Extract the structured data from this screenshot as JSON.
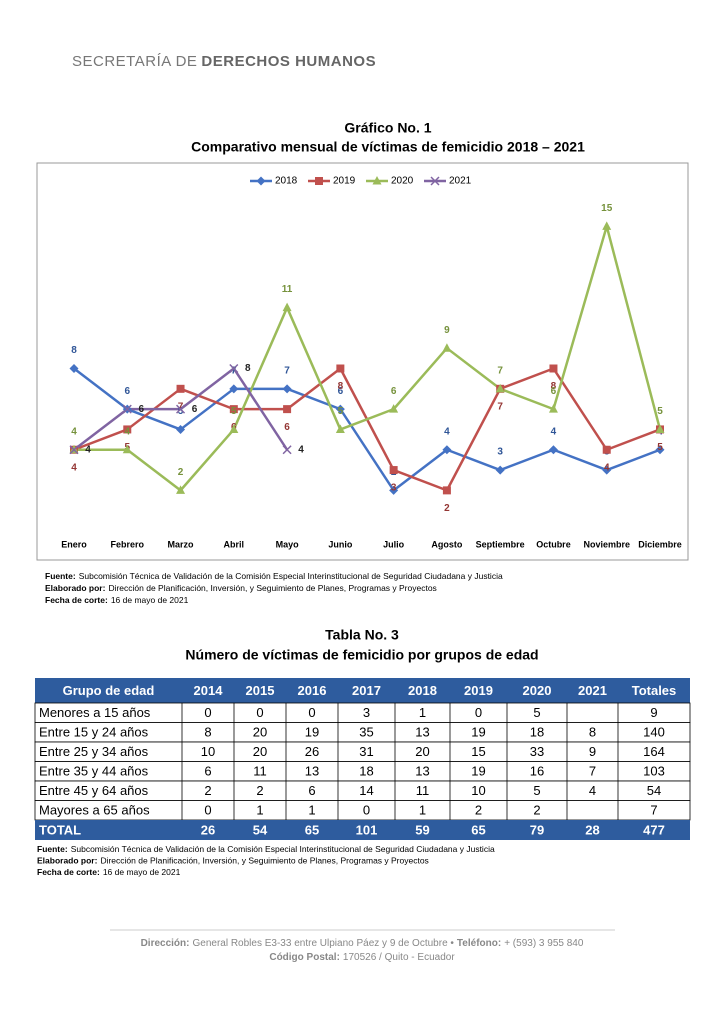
{
  "header": {
    "org_light": "SECRETARÍA DE",
    "org_bold": "DERECHOS HUMANOS"
  },
  "chart_data": {
    "type": "line",
    "title": "Gráfico No. 1",
    "subtitle": "Comparativo mensual de víctimas de femicidio 2018 – 2021",
    "categories": [
      "Enero",
      "Febrero",
      "Marzo",
      "Abril",
      "Mayo",
      "Junio",
      "Julio",
      "Agosto",
      "Septiembre",
      "Octubre",
      "Noviembre",
      "Diciembre"
    ],
    "series": [
      {
        "name": "2018",
        "color": "#4472c4",
        "label_color": "#2f5597",
        "marker": "diamond",
        "values": [
          8,
          6,
          5,
          7,
          7,
          6,
          2,
          4,
          3,
          4,
          3,
          4
        ]
      },
      {
        "name": "2019",
        "color": "#c0504d",
        "label_color": "#943634",
        "marker": "square",
        "values": [
          4,
          5,
          7,
          6,
          6,
          8,
          3,
          2,
          7,
          8,
          4,
          5
        ]
      },
      {
        "name": "2020",
        "color": "#9bbb59",
        "label_color": "#76923c",
        "marker": "triangle",
        "values": [
          4,
          4,
          2,
          5,
          11,
          5,
          6,
          9,
          7,
          6,
          15,
          5
        ]
      },
      {
        "name": "2021",
        "color": "#8064a2",
        "label_color": "#222222",
        "marker": "x",
        "values": [
          4,
          6,
          6,
          8,
          4,
          null,
          null,
          null,
          null,
          null,
          null,
          null
        ]
      }
    ],
    "ylim": [
      0,
      16
    ],
    "legend": "top",
    "grid": false
  },
  "chart_notes": [
    {
      "label": "Fuente:",
      "text": "Subcomisión Técnica de Validación de la Comisión Especial Interinstitucional de Seguridad Ciudadana y Justicia"
    },
    {
      "label": "Elaborado por:",
      "text": "Dirección de Planificación, Inversión, y Seguimiento de Planes, Programas y Proyectos"
    },
    {
      "label": "Fecha de corte:",
      "text": "16 de mayo de 2021"
    }
  ],
  "table": {
    "title": "Tabla No. 3",
    "subtitle": "Número de víctimas de femicidio por grupos de edad",
    "columns": [
      "Grupo de edad",
      "2014",
      "2015",
      "2016",
      "2017",
      "2018",
      "2019",
      "2020",
      "2021",
      "Totales"
    ],
    "rows": [
      [
        "Menores a 15 años",
        0,
        0,
        0,
        3,
        1,
        0,
        5,
        null,
        9
      ],
      [
        "Entre 15 y 24 años",
        8,
        20,
        19,
        35,
        13,
        19,
        18,
        8,
        140
      ],
      [
        "Entre 25 y 34 años",
        10,
        20,
        26,
        31,
        20,
        15,
        33,
        9,
        164
      ],
      [
        "Entre 35 y 44 años",
        6,
        11,
        13,
        18,
        13,
        19,
        16,
        7,
        103
      ],
      [
        "Entre 45 y 64 años",
        2,
        2,
        6,
        14,
        11,
        10,
        5,
        4,
        54
      ],
      [
        "Mayores a 65 años",
        0,
        1,
        1,
        0,
        1,
        2,
        2,
        null,
        7
      ]
    ],
    "total": [
      "TOTAL",
      26,
      54,
      65,
      101,
      59,
      65,
      79,
      28,
      477
    ]
  },
  "table_notes": [
    {
      "label": "Fuente:",
      "text": "Subcomisión Técnica de Validación de la Comisión Especial Interinstitucional de Seguridad Ciudadana y Justicia"
    },
    {
      "label": "Elaborado por:",
      "text": "Dirección de Planificación, Inversión, y Seguimiento de Planes, Programas y Proyectos"
    },
    {
      "label": "Fecha de corte:",
      "text": "16 de mayo de 2021"
    }
  ],
  "footer": {
    "address_label": "Dirección:",
    "address": "General Robles E3-33 entre Ulpiano Páez y 9 de Octubre •",
    "phone_label": "Teléfono:",
    "phone": "+ (593) 3 955 840",
    "postal_label": "Código Postal:",
    "postal": "170526 / Quito - Ecuador"
  }
}
